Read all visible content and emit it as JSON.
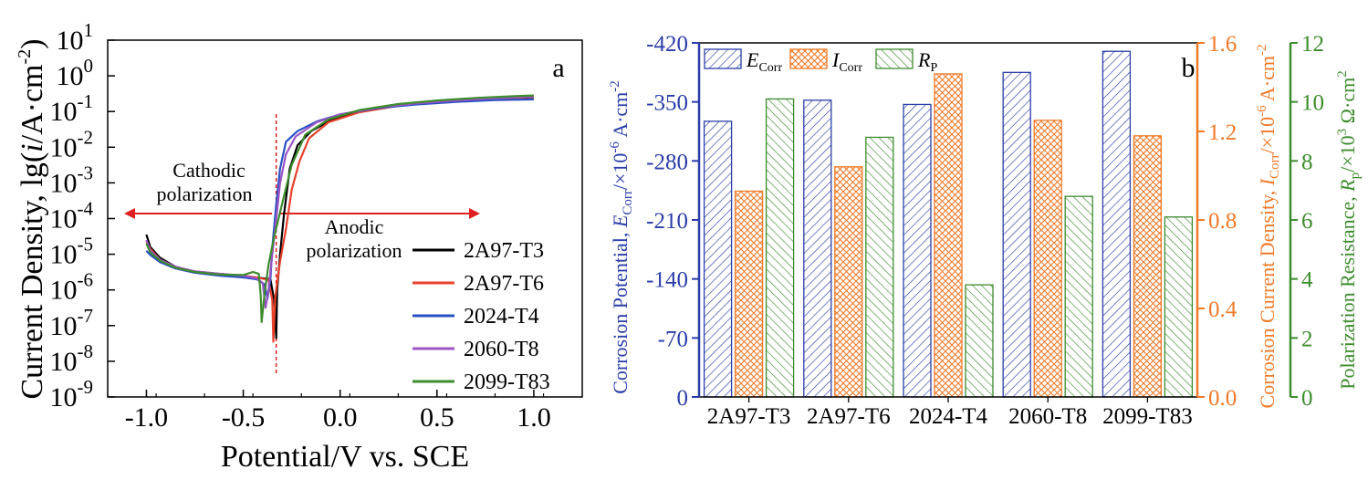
{
  "chart_data": [
    {
      "type": "line",
      "panel_label": "a",
      "xlabel": "Potential/V vs. SCE",
      "ylabel": "Current Density, lg(i/A·cm⁻²)",
      "ylabel_parts": {
        "pre": "Current Density, lg(",
        "ital": "i",
        "post": "/A·cm",
        "sup": "-2",
        "close": ")"
      },
      "xlim": [
        -1.2,
        1.25
      ],
      "ylim_log10": [
        -9,
        1
      ],
      "x_ticks": [
        -1.0,
        -0.5,
        0.0,
        0.5,
        1.0
      ],
      "x_tick_labels": [
        "-1.0",
        "-0.5",
        "0.0",
        "0.5",
        "1.0"
      ],
      "y_ticks_log10": [
        1,
        0,
        -1,
        -2,
        -3,
        -4,
        -5,
        -6,
        -7,
        -8,
        -9
      ],
      "y_tick_labels": [
        {
          "base": "10",
          "exp": "1"
        },
        {
          "base": "10",
          "exp": "0"
        },
        {
          "base": "10",
          "exp": "-1"
        },
        {
          "base": "10",
          "exp": "-2"
        },
        {
          "base": "10",
          "exp": "-3"
        },
        {
          "base": "10",
          "exp": "-4"
        },
        {
          "base": "10",
          "exp": "-5"
        },
        {
          "base": "10",
          "exp": "-6"
        },
        {
          "base": "10",
          "exp": "-7"
        },
        {
          "base": "10",
          "exp": "-8"
        },
        {
          "base": "10",
          "exp": "-9"
        }
      ],
      "annotations": {
        "cathodic_line1": "Cathodic",
        "cathodic_line2": "polarization",
        "anodic_line1": "Anodic",
        "anodic_line2": "polarization",
        "arrow_color": "#e02020",
        "divider_x": -0.33
      },
      "legend_position": "bottom-right",
      "series": [
        {
          "name": "2A97-T3",
          "color": "#000000",
          "points": [
            [
              -1.0,
              -4.45
            ],
            [
              -0.98,
              -4.8
            ],
            [
              -0.93,
              -5.1
            ],
            [
              -0.85,
              -5.35
            ],
            [
              -0.75,
              -5.5
            ],
            [
              -0.62,
              -5.58
            ],
            [
              -0.5,
              -5.62
            ],
            [
              -0.42,
              -5.66
            ],
            [
              -0.36,
              -5.7
            ],
            [
              -0.34,
              -6.3
            ],
            [
              -0.33,
              -7.35
            ],
            [
              -0.325,
              -6.0
            ],
            [
              -0.31,
              -5.0
            ],
            [
              -0.29,
              -3.9
            ],
            [
              -0.26,
              -2.6
            ],
            [
              -0.22,
              -1.95
            ],
            [
              -0.15,
              -1.55
            ],
            [
              -0.05,
              -1.25
            ],
            [
              0.1,
              -0.98
            ],
            [
              0.3,
              -0.82
            ],
            [
              0.5,
              -0.72
            ],
            [
              0.7,
              -0.66
            ],
            [
              0.9,
              -0.62
            ],
            [
              1.0,
              -0.6
            ]
          ]
        },
        {
          "name": "2A97-T6",
          "color": "#e8412c",
          "points": [
            [
              -1.0,
              -4.65
            ],
            [
              -0.98,
              -4.85
            ],
            [
              -0.93,
              -5.15
            ],
            [
              -0.85,
              -5.35
            ],
            [
              -0.75,
              -5.48
            ],
            [
              -0.62,
              -5.55
            ],
            [
              -0.5,
              -5.6
            ],
            [
              -0.42,
              -5.66
            ],
            [
              -0.37,
              -5.72
            ],
            [
              -0.35,
              -6.3
            ],
            [
              -0.345,
              -7.45
            ],
            [
              -0.335,
              -6.2
            ],
            [
              -0.31,
              -5.2
            ],
            [
              -0.28,
              -4.3
            ],
            [
              -0.25,
              -3.2
            ],
            [
              -0.21,
              -2.4
            ],
            [
              -0.16,
              -1.75
            ],
            [
              -0.06,
              -1.3
            ],
            [
              0.1,
              -1.02
            ],
            [
              0.3,
              -0.84
            ],
            [
              0.5,
              -0.74
            ],
            [
              0.7,
              -0.67
            ],
            [
              0.9,
              -0.62
            ],
            [
              1.0,
              -0.59
            ]
          ]
        },
        {
          "name": "2024-T4",
          "color": "#2a4fc4",
          "points": [
            [
              -1.0,
              -4.9
            ],
            [
              -0.98,
              -5.02
            ],
            [
              -0.93,
              -5.22
            ],
            [
              -0.85,
              -5.4
            ],
            [
              -0.75,
              -5.52
            ],
            [
              -0.62,
              -5.6
            ],
            [
              -0.5,
              -5.65
            ],
            [
              -0.43,
              -5.7
            ],
            [
              -0.39,
              -5.85
            ],
            [
              -0.375,
              -6.25
            ],
            [
              -0.36,
              -5.7
            ],
            [
              -0.35,
              -4.8
            ],
            [
              -0.33,
              -3.6
            ],
            [
              -0.31,
              -2.6
            ],
            [
              -0.28,
              -1.85
            ],
            [
              -0.22,
              -1.55
            ],
            [
              -0.12,
              -1.28
            ],
            [
              0.0,
              -1.08
            ],
            [
              0.2,
              -0.9
            ],
            [
              0.4,
              -0.8
            ],
            [
              0.6,
              -0.73
            ],
            [
              0.8,
              -0.68
            ],
            [
              1.0,
              -0.66
            ]
          ]
        },
        {
          "name": "2060-T8",
          "color": "#9a55c4",
          "points": [
            [
              -1.0,
              -4.6
            ],
            [
              -0.98,
              -4.9
            ],
            [
              -0.93,
              -5.15
            ],
            [
              -0.85,
              -5.35
            ],
            [
              -0.75,
              -5.48
            ],
            [
              -0.62,
              -5.55
            ],
            [
              -0.5,
              -5.6
            ],
            [
              -0.43,
              -5.68
            ],
            [
              -0.4,
              -5.8
            ],
            [
              -0.385,
              -6.5
            ],
            [
              -0.37,
              -6.0
            ],
            [
              -0.35,
              -5.0
            ],
            [
              -0.33,
              -4.0
            ],
            [
              -0.31,
              -3.0
            ],
            [
              -0.28,
              -2.2
            ],
            [
              -0.23,
              -1.7
            ],
            [
              -0.12,
              -1.3
            ],
            [
              0.0,
              -1.08
            ],
            [
              0.2,
              -0.88
            ],
            [
              0.4,
              -0.77
            ],
            [
              0.6,
              -0.69
            ],
            [
              0.8,
              -0.63
            ],
            [
              1.0,
              -0.58
            ]
          ]
        },
        {
          "name": "2099-T83",
          "color": "#3d8c2e",
          "points": [
            [
              -1.0,
              -4.7
            ],
            [
              -0.98,
              -4.95
            ],
            [
              -0.93,
              -5.18
            ],
            [
              -0.85,
              -5.38
            ],
            [
              -0.75,
              -5.5
            ],
            [
              -0.62,
              -5.57
            ],
            [
              -0.5,
              -5.58
            ],
            [
              -0.45,
              -5.5
            ],
            [
              -0.42,
              -5.55
            ],
            [
              -0.41,
              -6.15
            ],
            [
              -0.405,
              -6.9
            ],
            [
              -0.39,
              -6.1
            ],
            [
              -0.37,
              -5.3
            ],
            [
              -0.34,
              -4.5
            ],
            [
              -0.3,
              -3.6
            ],
            [
              -0.25,
              -2.5
            ],
            [
              -0.18,
              -1.65
            ],
            [
              -0.06,
              -1.22
            ],
            [
              0.1,
              -0.96
            ],
            [
              0.3,
              -0.79
            ],
            [
              0.5,
              -0.69
            ],
            [
              0.7,
              -0.62
            ],
            [
              0.9,
              -0.57
            ],
            [
              1.0,
              -0.55
            ]
          ]
        }
      ]
    },
    {
      "type": "bar",
      "panel_label": "b",
      "categories": [
        "2A97-T3",
        "2A97-T6",
        "2024-T4",
        "2060-T8",
        "2099-T83"
      ],
      "series": [
        {
          "name": "E",
          "subscript": "Corr",
          "axis": "left",
          "color": "#2b3da8",
          "hatch": "diag-down",
          "values": [
            -327,
            -352,
            -347,
            -385,
            -410
          ]
        },
        {
          "name": "I",
          "subscript": "Corr",
          "axis": "right1",
          "color": "#f07a28",
          "hatch": "cross",
          "values": [
            0.93,
            1.04,
            1.46,
            1.25,
            1.18
          ]
        },
        {
          "name": "R",
          "subscript": "P",
          "axis": "right2",
          "color": "#3d8c2e",
          "hatch": "diag-up",
          "values": [
            10.1,
            8.8,
            3.8,
            6.8,
            6.1
          ]
        }
      ],
      "left_axis": {
        "label_pre": "Corrosion Potential, ",
        "label_ital": "E",
        "label_sub": "Corr",
        "label_post": "/×10",
        "label_sup": "-6",
        "label_end": " A·cm",
        "label_sup2": "-2",
        "ylim": [
          0,
          -420
        ],
        "ticks": [
          0,
          -70,
          -140,
          -210,
          -280,
          -350,
          -420
        ],
        "tick_labels": [
          "0",
          "-70",
          "-140",
          "-210",
          "-280",
          "-350",
          "-420"
        ],
        "color": "#2b3da8"
      },
      "right1_axis": {
        "label_pre": "Corrosion Current Density, ",
        "label_ital": "I",
        "label_sub": "Corr",
        "label_post": "/×10",
        "label_sup": "-6",
        "label_end": " A·cm",
        "label_sup2": "-2",
        "ylim": [
          0,
          1.6
        ],
        "ticks": [
          0,
          0.4,
          0.8,
          1.2,
          1.6
        ],
        "tick_labels": [
          "0.0",
          "0.4",
          "0.8",
          "1.2",
          "1.6"
        ],
        "color": "#f07a28"
      },
      "right2_axis": {
        "label_pre": "Polarization Resistance, ",
        "label_ital": "R",
        "label_sub": "p",
        "label_post": "/×10",
        "label_sup": "3",
        "label_end": " Ω·cm",
        "label_sup2": "2",
        "ylim": [
          0,
          12
        ],
        "ticks": [
          0,
          2,
          4,
          6,
          8,
          10,
          12
        ],
        "tick_labels": [
          "0",
          "2",
          "4",
          "6",
          "8",
          "10",
          "12"
        ],
        "color": "#3d8c2e"
      },
      "legend_position": "top-left"
    }
  ]
}
